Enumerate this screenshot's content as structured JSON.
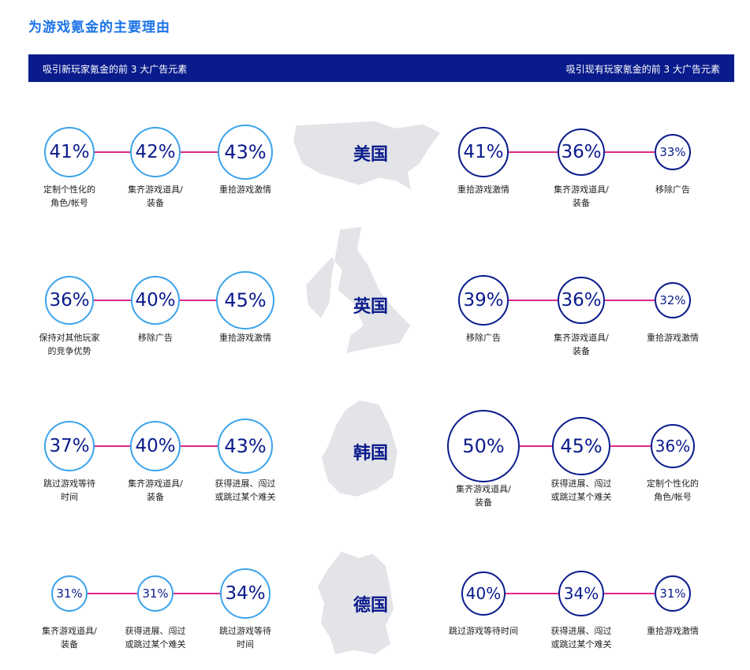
{
  "title": "为游戏氪金的主要理由",
  "banner": {
    "left": "吸引新玩家氪金的前 3 大广告元素",
    "right": "吸引现有玩家氪金的前 3 大广告元素"
  },
  "colors": {
    "navy": "#0a1b8c",
    "light_blue": "#3ba3ec",
    "pink": "#e0288a",
    "map": "#e3e4e8"
  },
  "rows": [
    {
      "country": "美国",
      "left": [
        {
          "value": "41%",
          "label": "定制个性化的\n角色/帐号"
        },
        {
          "value": "42%",
          "label": "集齐游戏道具/\n装备"
        },
        {
          "value": "43%",
          "label": "重拾游戏激情"
        }
      ],
      "right": [
        {
          "value": "41%",
          "label": "重拾游戏激情"
        },
        {
          "value": "36%",
          "label": "集齐游戏道具/\n装备"
        },
        {
          "value": "33%",
          "label": "移除广告"
        }
      ]
    },
    {
      "country": "英国",
      "left": [
        {
          "value": "36%",
          "label": "保持对其他玩家\n的竞争优势"
        },
        {
          "value": "40%",
          "label": "移除广告"
        },
        {
          "value": "45%",
          "label": "重拾游戏激情"
        }
      ],
      "right": [
        {
          "value": "39%",
          "label": "移除广告"
        },
        {
          "value": "36%",
          "label": "集齐游戏道具/\n装备"
        },
        {
          "value": "32%",
          "label": "重拾游戏激情"
        }
      ]
    },
    {
      "country": "韩国",
      "left": [
        {
          "value": "37%",
          "label": "跳过游戏等待\n时间"
        },
        {
          "value": "40%",
          "label": "集齐游戏道具/\n装备"
        },
        {
          "value": "43%",
          "label": "获得进展、闯过\n或跳过某个难关"
        }
      ],
      "right": [
        {
          "value": "50%",
          "label": "集齐游戏道具/\n装备"
        },
        {
          "value": "45%",
          "label": "获得进展、闯过\n或跳过某个难关"
        },
        {
          "value": "36%",
          "label": "定制个性化的\n角色/帐号"
        }
      ]
    },
    {
      "country": "德国",
      "left": [
        {
          "value": "31%",
          "label": "集齐游戏道具/\n装备"
        },
        {
          "value": "31%",
          "label": "获得进展、闯过\n或跳过某个难关"
        },
        {
          "value": "34%",
          "label": "跳过游戏等待\n时间"
        }
      ],
      "right": [
        {
          "value": "40%",
          "label": "跳过游戏等待时间"
        },
        {
          "value": "34%",
          "label": "获得进展、闯过\n或跳过某个难关"
        },
        {
          "value": "31%",
          "label": "重拾游戏激情"
        }
      ]
    }
  ]
}
